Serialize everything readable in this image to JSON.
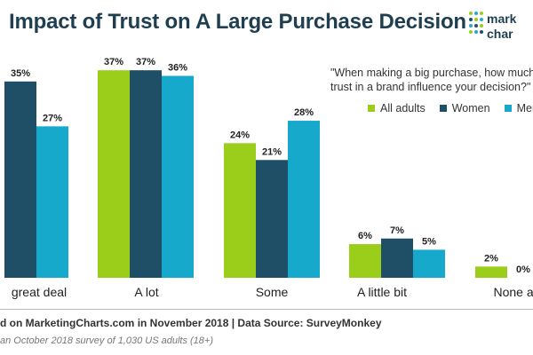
{
  "header": {
    "title": "Impact of Trust on A Large Purchase Decision"
  },
  "logo": {
    "line1": "mark",
    "line2": "char",
    "icon": "marketingcharts-dots-logo",
    "dot_colors": [
      "#9bcd1b",
      "#1f4f66",
      "#2aa7c9"
    ]
  },
  "question": {
    "line1": "\"When making a big purchase, how much",
    "line2": "trust in a brand influence your decision?\""
  },
  "colors": {
    "all_adults": "#9bcd1b",
    "women": "#1f4f66",
    "men": "#17a9cb"
  },
  "chart_data": {
    "type": "bar",
    "title": "Impact of Trust on A Large Purchase Decision",
    "categories": [
      "great deal",
      "A lot",
      "Some",
      "A little bit",
      "None at"
    ],
    "series": [
      {
        "name": "All adults",
        "values": [
          null,
          37,
          24,
          6,
          2
        ]
      },
      {
        "name": "Women",
        "values": [
          35,
          37,
          21,
          7,
          0
        ]
      },
      {
        "name": "Men",
        "values": [
          27,
          36,
          28,
          5,
          null
        ]
      }
    ],
    "value_suffix": "%",
    "legend": {
      "position": "top-right"
    },
    "grid": false,
    "xlabel": "",
    "ylabel": "",
    "ylim": [
      0,
      37
    ]
  },
  "footer": {
    "source": "d on MarketingCharts.com in November 2018 | Data Source: SurveyMonkey",
    "note": "an October 2018 survey of 1,030 US adults (18+)"
  }
}
